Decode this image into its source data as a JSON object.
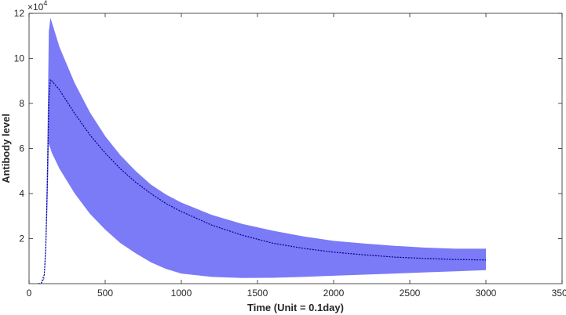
{
  "chart_data": {
    "type": "area",
    "title": "",
    "xlabel": "Time (Unit = 0.1day)",
    "ylabel": "Antibody level",
    "y_multiplier": "×10",
    "y_multiplier_exponent": "4",
    "xlim": [
      0,
      3500
    ],
    "ylim": [
      0,
      12
    ],
    "x_ticks": [
      0,
      500,
      1000,
      1500,
      2000,
      2500,
      3000,
      3500
    ],
    "x_tick_labels": [
      "0",
      "500",
      "1000",
      "1500",
      "2000",
      "2500",
      "3000",
      "3500"
    ],
    "y_ticks": [
      2,
      4,
      6,
      8,
      10,
      12
    ],
    "y_tick_labels": [
      "2",
      "4",
      "6",
      "8",
      "10",
      "12"
    ],
    "grid": false,
    "colors": {
      "band": "#7b7bf7",
      "line": "#00008b",
      "axis": "#262626"
    },
    "series": [
      {
        "kind": "band",
        "x": [
          80,
          100,
          110,
          120,
          130,
          140,
          150,
          200,
          300,
          400,
          500,
          600,
          700,
          800,
          900,
          1000,
          1200,
          1400,
          1600,
          1800,
          2000,
          2200,
          2400,
          2600,
          2800,
          3000
        ],
        "lower": [
          0,
          0.2,
          1.2,
          3.2,
          6.2,
          6.0,
          5.8,
          5.1,
          4.0,
          3.1,
          2.4,
          1.8,
          1.35,
          0.95,
          0.65,
          0.45,
          0.3,
          0.25,
          0.26,
          0.3,
          0.35,
          0.4,
          0.45,
          0.5,
          0.55,
          0.6
        ],
        "upper": [
          0,
          0.3,
          2.0,
          6.0,
          11.2,
          11.8,
          11.6,
          10.5,
          8.9,
          7.6,
          6.55,
          5.7,
          5.0,
          4.4,
          3.95,
          3.6,
          3.05,
          2.65,
          2.35,
          2.1,
          1.9,
          1.78,
          1.68,
          1.6,
          1.55,
          1.55
        ]
      },
      {
        "kind": "line",
        "x": [
          60,
          80,
          100,
          110,
          120,
          130,
          140,
          150,
          200,
          300,
          400,
          500,
          600,
          700,
          800,
          900,
          1000,
          1200,
          1400,
          1600,
          1800,
          2000,
          2200,
          2400,
          2600,
          2800,
          3000
        ],
        "y": [
          0,
          0.02,
          0.4,
          1.6,
          4.5,
          8.2,
          9.05,
          9.0,
          8.6,
          7.55,
          6.6,
          5.8,
          5.1,
          4.5,
          4.0,
          3.55,
          3.2,
          2.6,
          2.15,
          1.8,
          1.57,
          1.4,
          1.28,
          1.18,
          1.12,
          1.07,
          1.05
        ]
      }
    ]
  }
}
